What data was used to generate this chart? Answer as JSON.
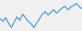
{
  "values": [
    28,
    22,
    30,
    18,
    8,
    20,
    32,
    24,
    38,
    30,
    22,
    16,
    8,
    18,
    28,
    38,
    44,
    36,
    42,
    48,
    40,
    46,
    52,
    56,
    48,
    54,
    58,
    62,
    55,
    50
  ],
  "line_color": "#4d9fdb",
  "background_color": "#f0f0f0",
  "linewidth": 1.2,
  "ylim": [
    0,
    70
  ]
}
